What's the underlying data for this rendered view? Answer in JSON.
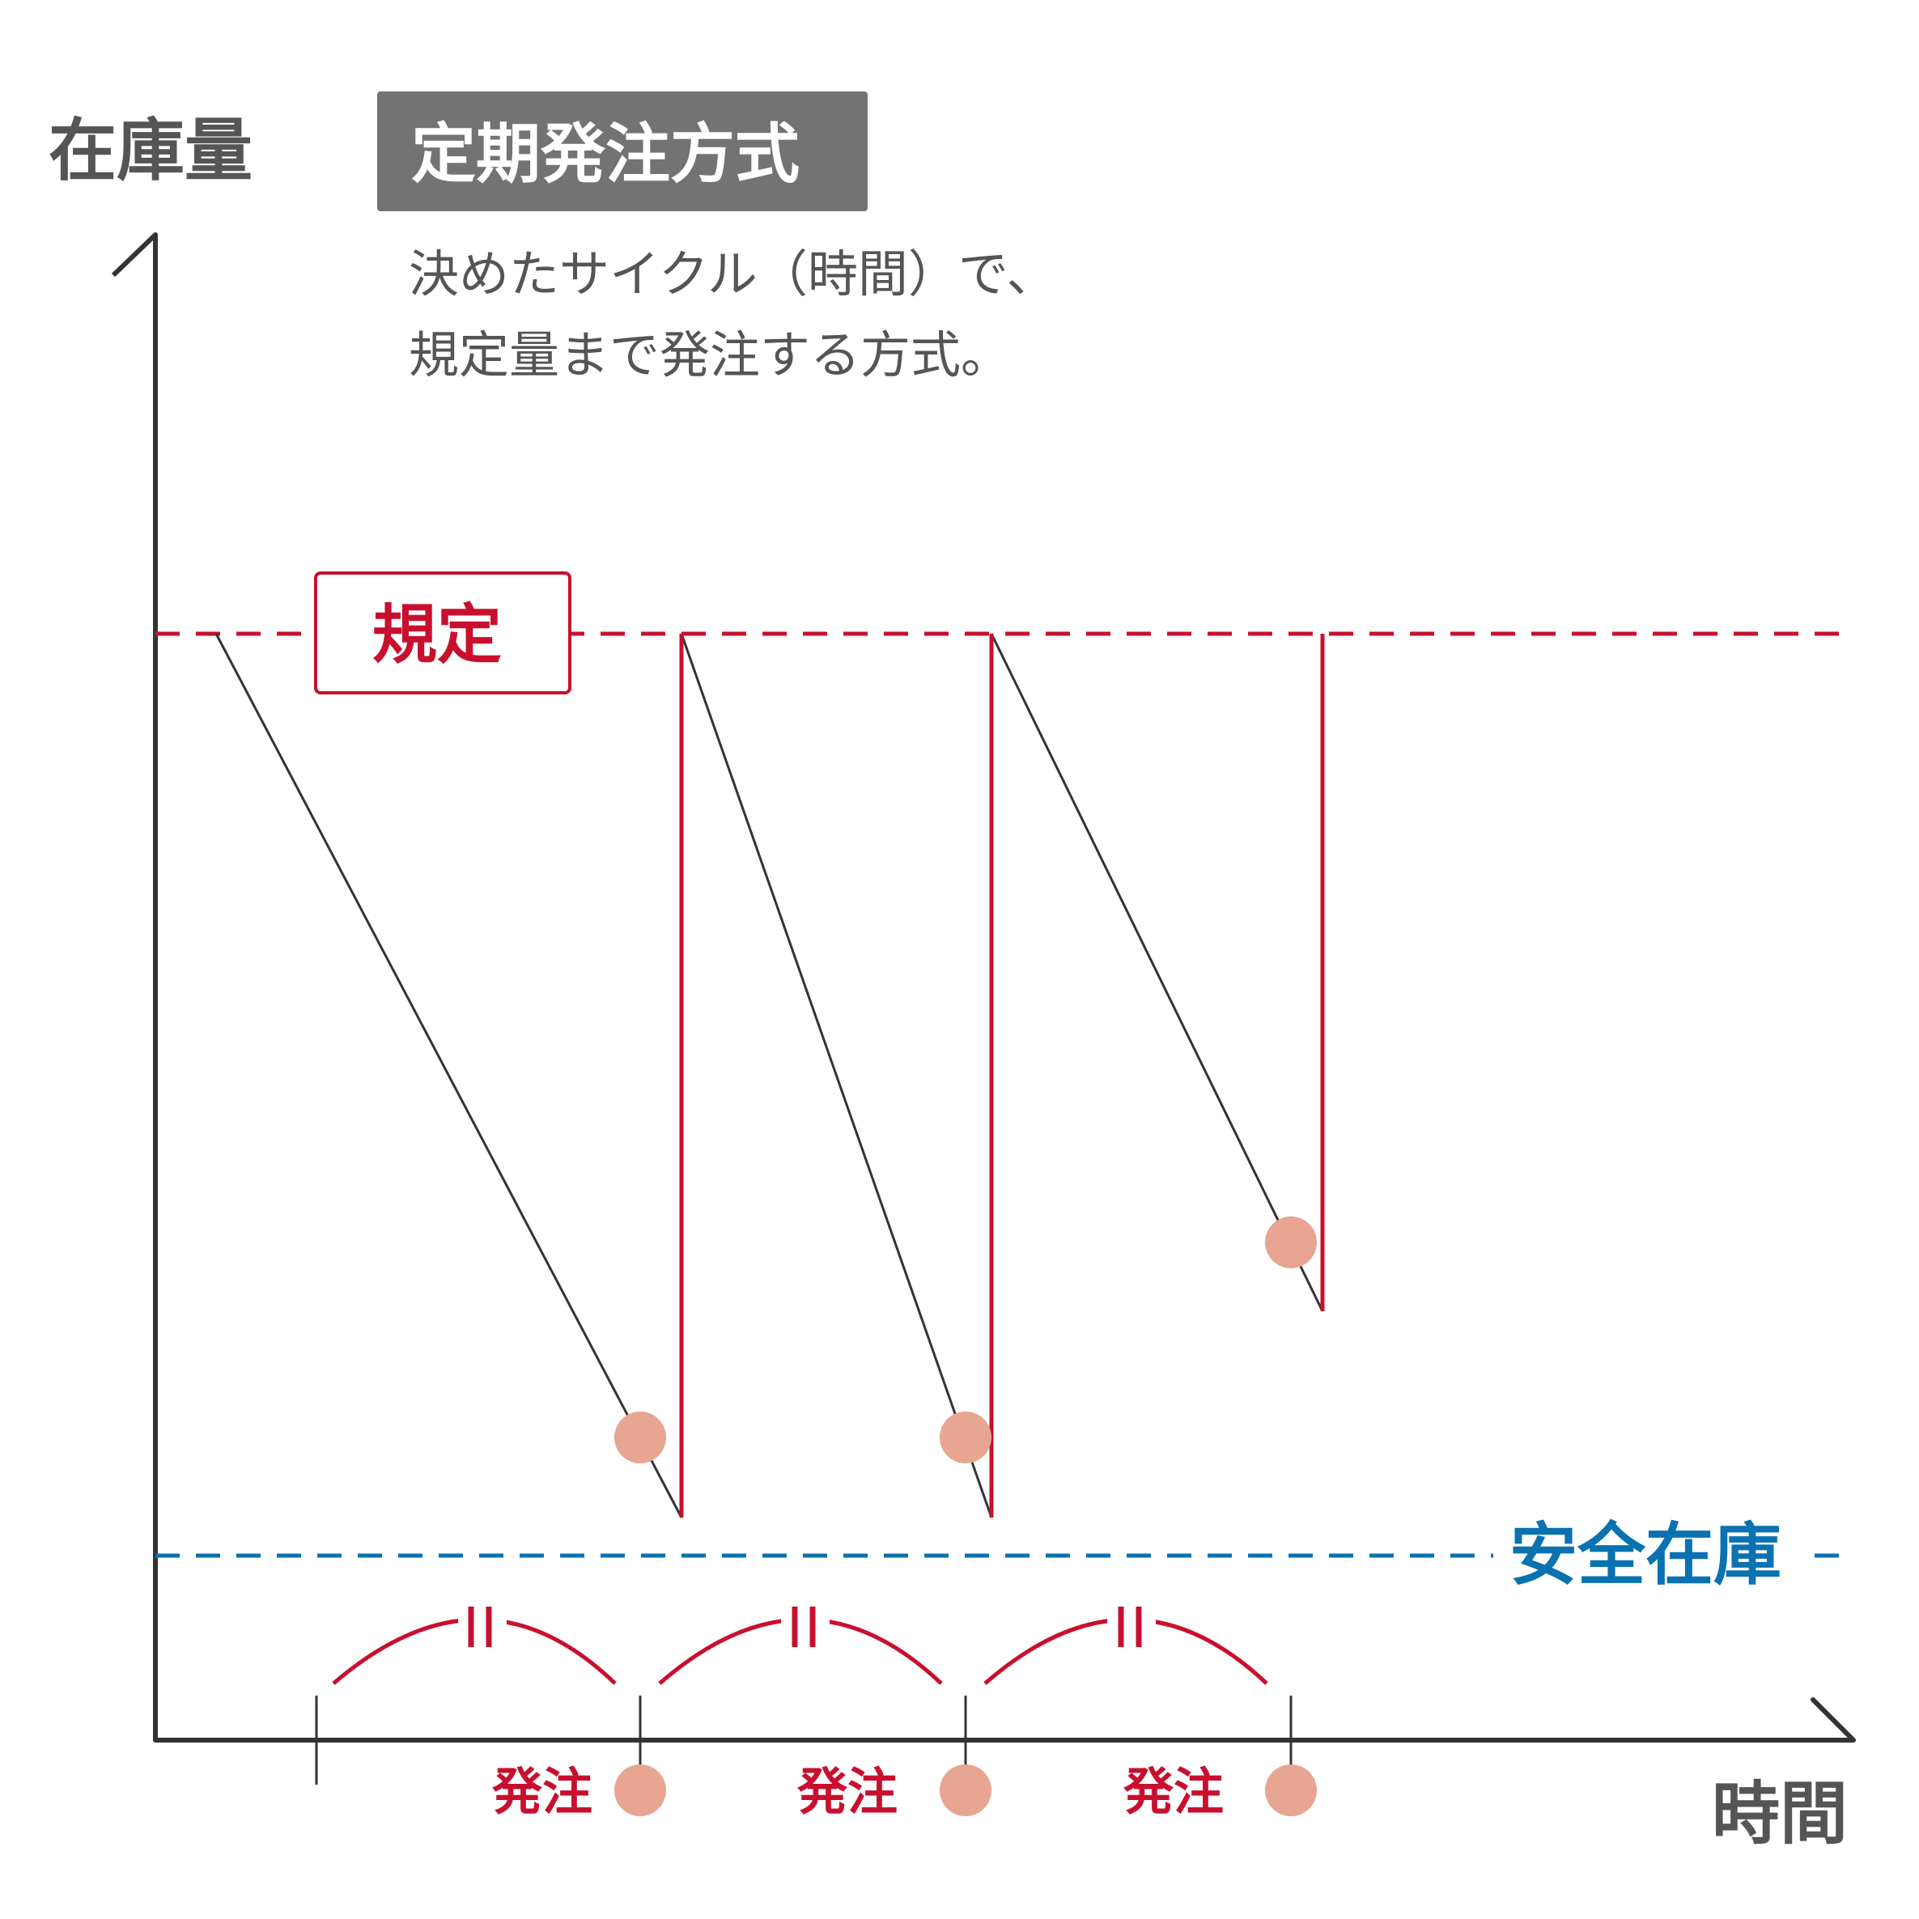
{
  "title": "定期発注方式",
  "description": [
    "決めたサイクル（時間）で、",
    "規定量まで発注する方式。"
  ],
  "axes": {
    "y_label": "在庫量",
    "x_label": "時間"
  },
  "levels": {
    "max_label": "規定",
    "safety_label": "安全在庫"
  },
  "order_label": "発注",
  "interval_mark": "＝",
  "colors": {
    "axis": "#333333",
    "max_line": "#c8102e",
    "safety_line": "#0a72b0",
    "order_dot": "#e8a592",
    "title_bg": "#737373"
  }
}
